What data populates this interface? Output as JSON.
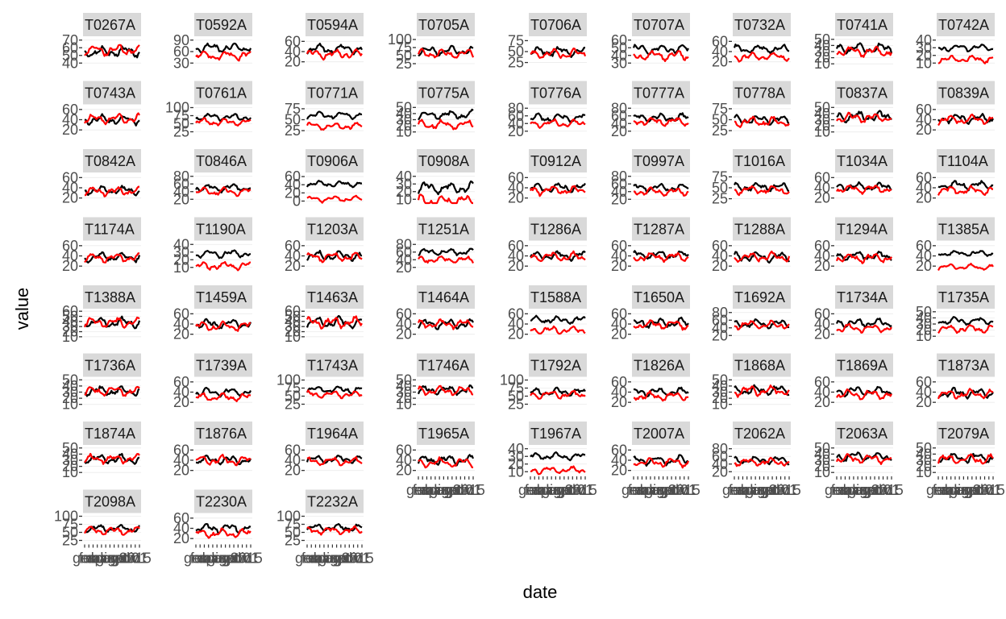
{
  "chart_data": {
    "type": "line",
    "facet_layout": "wrap",
    "ncol": 9,
    "xlabel": "date",
    "ylabel": "value",
    "x_tick_labels": [
      "gen",
      "feb",
      "mar",
      "apr",
      "mag",
      "giu",
      "lug",
      "ago",
      "set",
      "ott",
      "nov",
      "dic",
      "2015",
      "01"
    ],
    "grid": true,
    "legend": "none",
    "colors": {
      "series_a": "#000000",
      "series_b": "#ff0000",
      "strip": "#d9d9d9",
      "grid": "#ebebeb"
    },
    "facets": [
      {
        "label": "T0267A",
        "ticks": [
          "70",
          "60",
          "50",
          "40"
        ],
        "ylim": [
          35,
          75
        ],
        "a_mean": 55,
        "b_mean": 57,
        "amp": 8
      },
      {
        "label": "T0592A",
        "ticks": [
          "90",
          "60",
          "30"
        ],
        "ylim": [
          20,
          100
        ],
        "a_mean": 70,
        "b_mean": 50,
        "amp": 14
      },
      {
        "label": "T0594A",
        "ticks": [
          "60",
          "40",
          "20"
        ],
        "ylim": [
          10,
          70
        ],
        "a_mean": 45,
        "b_mean": 35,
        "amp": 10
      },
      {
        "label": "T0705A",
        "ticks": [
          "100",
          "75",
          "50",
          "25"
        ],
        "ylim": [
          15,
          110
        ],
        "a_mean": 65,
        "b_mean": 55,
        "amp": 15
      },
      {
        "label": "T0706A",
        "ticks": [
          "75",
          "50",
          "25"
        ],
        "ylim": [
          15,
          85
        ],
        "a_mean": 50,
        "b_mean": 45,
        "amp": 12
      },
      {
        "label": "T0707A",
        "ticks": [
          "60",
          "50",
          "40",
          "30"
        ],
        "ylim": [
          25,
          65
        ],
        "a_mean": 48,
        "b_mean": 40,
        "amp": 7
      },
      {
        "label": "T0732A",
        "ticks": [
          "60",
          "40",
          "20"
        ],
        "ylim": [
          10,
          70
        ],
        "a_mean": 45,
        "b_mean": 30,
        "amp": 9
      },
      {
        "label": "T0741A",
        "ticks": [
          "50",
          "40",
          "30",
          "20",
          "10"
        ],
        "ylim": [
          5,
          55
        ],
        "a_mean": 35,
        "b_mean": 30,
        "amp": 9
      },
      {
        "label": "T0742A",
        "ticks": [
          "40",
          "30",
          "20",
          "10"
        ],
        "ylim": [
          5,
          45
        ],
        "a_mean": 30,
        "b_mean": 15,
        "amp": 5
      },
      {
        "label": "T0743A",
        "ticks": [
          "60",
          "40",
          "20"
        ],
        "ylim": [
          10,
          70
        ],
        "a_mean": 40,
        "b_mean": 42,
        "amp": 10
      },
      {
        "label": "T0761A",
        "ticks": [
          "100",
          "75",
          "50",
          "25"
        ],
        "ylim": [
          15,
          110
        ],
        "a_mean": 70,
        "b_mean": 55,
        "amp": 12
      },
      {
        "label": "T0771A",
        "ticks": [
          "75",
          "50",
          "25"
        ],
        "ylim": [
          15,
          85
        ],
        "a_mean": 60,
        "b_mean": 35,
        "amp": 9
      },
      {
        "label": "T0775A",
        "ticks": [
          "50",
          "40",
          "30",
          "20",
          "10"
        ],
        "ylim": [
          5,
          55
        ],
        "a_mean": 38,
        "b_mean": 22,
        "amp": 8
      },
      {
        "label": "T0776A",
        "ticks": [
          "80",
          "60",
          "40",
          "20"
        ],
        "ylim": [
          10,
          90
        ],
        "a_mean": 55,
        "b_mean": 40,
        "amp": 12
      },
      {
        "label": "T0777A",
        "ticks": [
          "80",
          "60",
          "40",
          "20"
        ],
        "ylim": [
          10,
          90
        ],
        "a_mean": 55,
        "b_mean": 45,
        "amp": 12
      },
      {
        "label": "T0778A",
        "ticks": [
          "75",
          "50",
          "25"
        ],
        "ylim": [
          15,
          85
        ],
        "a_mean": 50,
        "b_mean": 45,
        "amp": 12
      },
      {
        "label": "T0837A",
        "ticks": [
          "50",
          "40",
          "30",
          "20",
          "10"
        ],
        "ylim": [
          5,
          55
        ],
        "a_mean": 35,
        "b_mean": 33,
        "amp": 9
      },
      {
        "label": "T0839A",
        "ticks": [
          "60",
          "40",
          "20"
        ],
        "ylim": [
          10,
          70
        ],
        "a_mean": 42,
        "b_mean": 40,
        "amp": 10
      },
      {
        "label": "T0842A",
        "ticks": [
          "60",
          "40",
          "20"
        ],
        "ylim": [
          10,
          70
        ],
        "a_mean": 35,
        "b_mean": 33,
        "amp": 9
      },
      {
        "label": "T0846A",
        "ticks": [
          "80",
          "60",
          "40",
          "20"
        ],
        "ylim": [
          10,
          90
        ],
        "a_mean": 50,
        "b_mean": 40,
        "amp": 12
      },
      {
        "label": "T0906A",
        "ticks": [
          "60",
          "40",
          "20",
          "0"
        ],
        "ylim": [
          -5,
          70
        ],
        "a_mean": 42,
        "b_mean": 5,
        "amp": 8
      },
      {
        "label": "T0908A",
        "ticks": [
          "40",
          "30",
          "20",
          "10"
        ],
        "ylim": [
          5,
          45
        ],
        "a_mean": 25,
        "b_mean": 8,
        "amp": 8
      },
      {
        "label": "T0912A",
        "ticks": [
          "60",
          "40",
          "20"
        ],
        "ylim": [
          10,
          70
        ],
        "a_mean": 40,
        "b_mean": 35,
        "amp": 10
      },
      {
        "label": "T0997A",
        "ticks": [
          "80",
          "60",
          "40",
          "20"
        ],
        "ylim": [
          10,
          90
        ],
        "a_mean": 50,
        "b_mean": 40,
        "amp": 11
      },
      {
        "label": "T1016A",
        "ticks": [
          "75",
          "50",
          "25"
        ],
        "ylim": [
          15,
          85
        ],
        "a_mean": 52,
        "b_mean": 45,
        "amp": 11
      },
      {
        "label": "T1034A",
        "ticks": [
          "60",
          "40",
          "20"
        ],
        "ylim": [
          10,
          70
        ],
        "a_mean": 42,
        "b_mean": 38,
        "amp": 9
      },
      {
        "label": "T1104A",
        "ticks": [
          "60",
          "40",
          "20"
        ],
        "ylim": [
          10,
          70
        ],
        "a_mean": 45,
        "b_mean": 35,
        "amp": 9
      },
      {
        "label": "T1174A",
        "ticks": [
          "60",
          "40",
          "20"
        ],
        "ylim": [
          10,
          70
        ],
        "a_mean": 38,
        "b_mean": 36,
        "amp": 10
      },
      {
        "label": "T1190A",
        "ticks": [
          "40",
          "30",
          "20",
          "10"
        ],
        "ylim": [
          5,
          45
        ],
        "a_mean": 28,
        "b_mean": 12,
        "amp": 6
      },
      {
        "label": "T1203A",
        "ticks": [
          "60",
          "40",
          "20"
        ],
        "ylim": [
          10,
          70
        ],
        "a_mean": 40,
        "b_mean": 38,
        "amp": 10
      },
      {
        "label": "T1251A",
        "ticks": [
          "80",
          "60",
          "40",
          "20"
        ],
        "ylim": [
          10,
          90
        ],
        "a_mean": 60,
        "b_mean": 40,
        "amp": 10
      },
      {
        "label": "T1286A",
        "ticks": [
          "60",
          "40",
          "20"
        ],
        "ylim": [
          10,
          70
        ],
        "a_mean": 40,
        "b_mean": 38,
        "amp": 10
      },
      {
        "label": "T1287A",
        "ticks": [
          "60",
          "40",
          "20"
        ],
        "ylim": [
          10,
          70
        ],
        "a_mean": 42,
        "b_mean": 38,
        "amp": 9
      },
      {
        "label": "T1288A",
        "ticks": [
          "60",
          "40",
          "20"
        ],
        "ylim": [
          10,
          70
        ],
        "a_mean": 38,
        "b_mean": 38,
        "amp": 10
      },
      {
        "label": "T1294A",
        "ticks": [
          "60",
          "40",
          "20"
        ],
        "ylim": [
          10,
          70
        ],
        "a_mean": 40,
        "b_mean": 36,
        "amp": 10
      },
      {
        "label": "T1385A",
        "ticks": [
          "60",
          "40",
          "20"
        ],
        "ylim": [
          10,
          70
        ],
        "a_mean": 45,
        "b_mean": 18,
        "amp": 6
      },
      {
        "label": "T1388A",
        "ticks": [
          "60",
          "50",
          "40",
          "30",
          "20",
          "10"
        ],
        "ylim": [
          5,
          65
        ],
        "a_mean": 38,
        "b_mean": 38,
        "amp": 11
      },
      {
        "label": "T1459A",
        "ticks": [
          "60",
          "40",
          "20"
        ],
        "ylim": [
          10,
          70
        ],
        "a_mean": 40,
        "b_mean": 36,
        "amp": 10
      },
      {
        "label": "T1463A",
        "ticks": [
          "60",
          "50",
          "40",
          "30",
          "20",
          "10"
        ],
        "ylim": [
          5,
          65
        ],
        "a_mean": 38,
        "b_mean": 38,
        "amp": 12
      },
      {
        "label": "T1464A",
        "ticks": [
          "60",
          "40",
          "20"
        ],
        "ylim": [
          10,
          70
        ],
        "a_mean": 40,
        "b_mean": 40,
        "amp": 10
      },
      {
        "label": "T1588A",
        "ticks": [
          "60",
          "40",
          "20"
        ],
        "ylim": [
          10,
          70
        ],
        "a_mean": 48,
        "b_mean": 28,
        "amp": 8
      },
      {
        "label": "T1650A",
        "ticks": [
          "60",
          "40",
          "20"
        ],
        "ylim": [
          10,
          70
        ],
        "a_mean": 42,
        "b_mean": 38,
        "amp": 10
      },
      {
        "label": "T1692A",
        "ticks": [
          "80",
          "60",
          "40",
          "20"
        ],
        "ylim": [
          10,
          90
        ],
        "a_mean": 50,
        "b_mean": 48,
        "amp": 12
      },
      {
        "label": "T1734A",
        "ticks": [
          "60",
          "40",
          "20"
        ],
        "ylim": [
          10,
          70
        ],
        "a_mean": 42,
        "b_mean": 32,
        "amp": 9
      },
      {
        "label": "T1735A",
        "ticks": [
          "50",
          "40",
          "30",
          "20",
          "10"
        ],
        "ylim": [
          5,
          55
        ],
        "a_mean": 35,
        "b_mean": 22,
        "amp": 7
      },
      {
        "label": "T1736A",
        "ticks": [
          "50",
          "40",
          "30",
          "20",
          "10"
        ],
        "ylim": [
          5,
          55
        ],
        "a_mean": 32,
        "b_mean": 32,
        "amp": 9
      },
      {
        "label": "T1739A",
        "ticks": [
          "60",
          "40",
          "20"
        ],
        "ylim": [
          10,
          70
        ],
        "a_mean": 40,
        "b_mean": 30,
        "amp": 9
      },
      {
        "label": "T1743A",
        "ticks": [
          "100",
          "75",
          "50",
          "25"
        ],
        "ylim": [
          15,
          110
        ],
        "a_mean": 70,
        "b_mean": 55,
        "amp": 12
      },
      {
        "label": "T1746A",
        "ticks": [
          "50",
          "40",
          "30",
          "20",
          "10"
        ],
        "ylim": [
          5,
          55
        ],
        "a_mean": 33,
        "b_mean": 32,
        "amp": 8
      },
      {
        "label": "T1792A",
        "ticks": [
          "100",
          "75",
          "50",
          "25"
        ],
        "ylim": [
          15,
          110
        ],
        "a_mean": 62,
        "b_mean": 55,
        "amp": 14
      },
      {
        "label": "T1826A",
        "ticks": [
          "60",
          "40",
          "20"
        ],
        "ylim": [
          10,
          70
        ],
        "a_mean": 40,
        "b_mean": 32,
        "amp": 9
      },
      {
        "label": "T1868A",
        "ticks": [
          "50",
          "40",
          "30",
          "20",
          "10"
        ],
        "ylim": [
          5,
          55
        ],
        "a_mean": 33,
        "b_mean": 32,
        "amp": 9
      },
      {
        "label": "T1869A",
        "ticks": [
          "60",
          "40",
          "20"
        ],
        "ylim": [
          10,
          70
        ],
        "a_mean": 42,
        "b_mean": 35,
        "amp": 10
      },
      {
        "label": "T1873A",
        "ticks": [
          "60",
          "40",
          "20"
        ],
        "ylim": [
          10,
          70
        ],
        "a_mean": 38,
        "b_mean": 36,
        "amp": 10
      },
      {
        "label": "T1874A",
        "ticks": [
          "50",
          "40",
          "30",
          "20",
          "10"
        ],
        "ylim": [
          5,
          55
        ],
        "a_mean": 32,
        "b_mean": 32,
        "amp": 8
      },
      {
        "label": "T1876A",
        "ticks": [
          "60",
          "40",
          "20"
        ],
        "ylim": [
          10,
          70
        ],
        "a_mean": 40,
        "b_mean": 40,
        "amp": 10
      },
      {
        "label": "T1964A",
        "ticks": [
          "60",
          "40",
          "20"
        ],
        "ylim": [
          10,
          70
        ],
        "a_mean": 42,
        "b_mean": 38,
        "amp": 9
      },
      {
        "label": "T1965A",
        "ticks": [
          "60",
          "40",
          "20"
        ],
        "ylim": [
          10,
          70
        ],
        "a_mean": 40,
        "b_mean": 35,
        "amp": 10
      },
      {
        "label": "T1967A",
        "ticks": [
          "40",
          "30",
          "20",
          "10"
        ],
        "ylim": [
          5,
          45
        ],
        "a_mean": 30,
        "b_mean": 12,
        "amp": 5
      },
      {
        "label": "T2007A",
        "ticks": [
          "60",
          "40",
          "20"
        ],
        "ylim": [
          10,
          70
        ],
        "a_mean": 40,
        "b_mean": 36,
        "amp": 10
      },
      {
        "label": "T2062A",
        "ticks": [
          "80",
          "60",
          "40",
          "20"
        ],
        "ylim": [
          10,
          90
        ],
        "a_mean": 50,
        "b_mean": 45,
        "amp": 11
      },
      {
        "label": "T2063A",
        "ticks": [
          "50",
          "40",
          "30",
          "20",
          "10"
        ],
        "ylim": [
          5,
          55
        ],
        "a_mean": 36,
        "b_mean": 32,
        "amp": 8
      },
      {
        "label": "T2079A",
        "ticks": [
          "50",
          "40",
          "30",
          "20",
          "10"
        ],
        "ylim": [
          5,
          55
        ],
        "a_mean": 34,
        "b_mean": 32,
        "amp": 9
      },
      {
        "label": "T2098A",
        "ticks": [
          "100",
          "75",
          "50",
          "25"
        ],
        "ylim": [
          15,
          110
        ],
        "a_mean": 62,
        "b_mean": 55,
        "amp": 13
      },
      {
        "label": "T2230A",
        "ticks": [
          "60",
          "40",
          "20"
        ],
        "ylim": [
          10,
          70
        ],
        "a_mean": 40,
        "b_mean": 30,
        "amp": 10
      },
      {
        "label": "T2232A",
        "ticks": [
          "100",
          "75",
          "50",
          "25"
        ],
        "ylim": [
          15,
          110
        ],
        "a_mean": 65,
        "b_mean": 55,
        "amp": 13
      }
    ]
  }
}
